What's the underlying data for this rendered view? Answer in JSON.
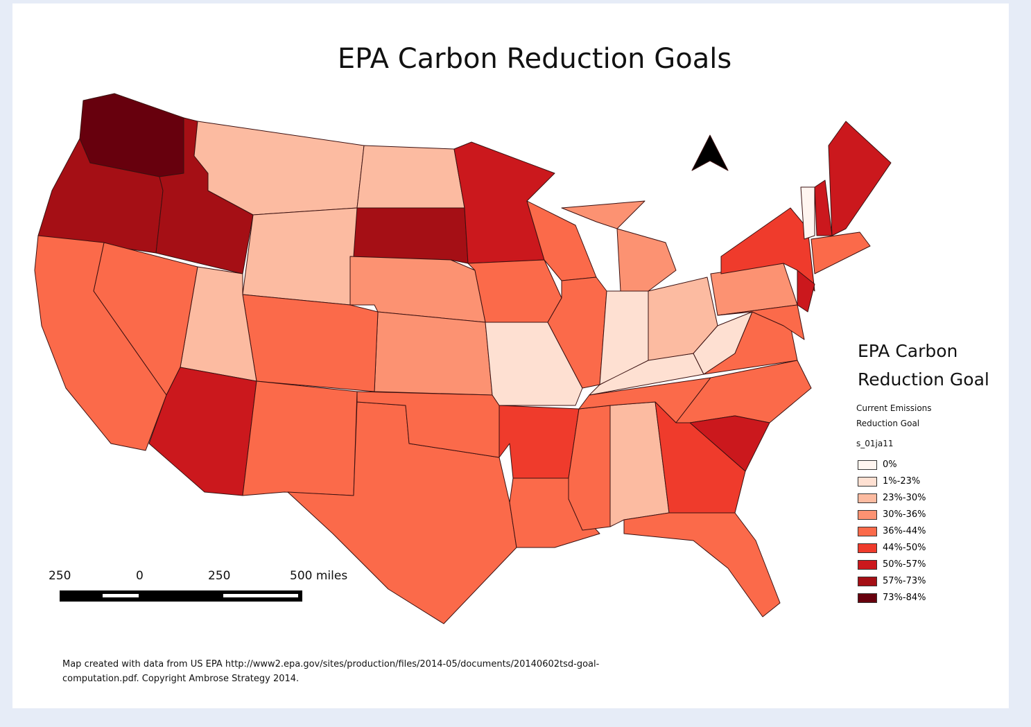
{
  "title": "EPA Carbon Reduction Goals",
  "legend": {
    "title": "EPA Carbon Reduction Goal",
    "subtitle": "Current Emissions Reduction Goal",
    "field": "s_01ja11",
    "classes": [
      {
        "label": "0%",
        "color": "#fff5f0"
      },
      {
        "label": "1%-23%",
        "color": "#fee0d2"
      },
      {
        "label": "23%-30%",
        "color": "#fcbba1"
      },
      {
        "label": "30%-36%",
        "color": "#fc9272"
      },
      {
        "label": "36%-44%",
        "color": "#fb6a4a"
      },
      {
        "label": "44%-50%",
        "color": "#ef3b2c"
      },
      {
        "label": "50%-57%",
        "color": "#cb181d"
      },
      {
        "label": "57%-73%",
        "color": "#a50f15"
      },
      {
        "label": "73%-84%",
        "color": "#67000d"
      }
    ]
  },
  "scale_bar": {
    "labels": [
      "250",
      "0",
      "250",
      "500 miles"
    ]
  },
  "source": [
    "Map created with data from US EPA http://www2.epa.gov/sites/production/files/2014-05/documents/20140602tsd-goal-",
    "computation.pdf.  Copyright Ambrose Strategy 2014."
  ]
}
